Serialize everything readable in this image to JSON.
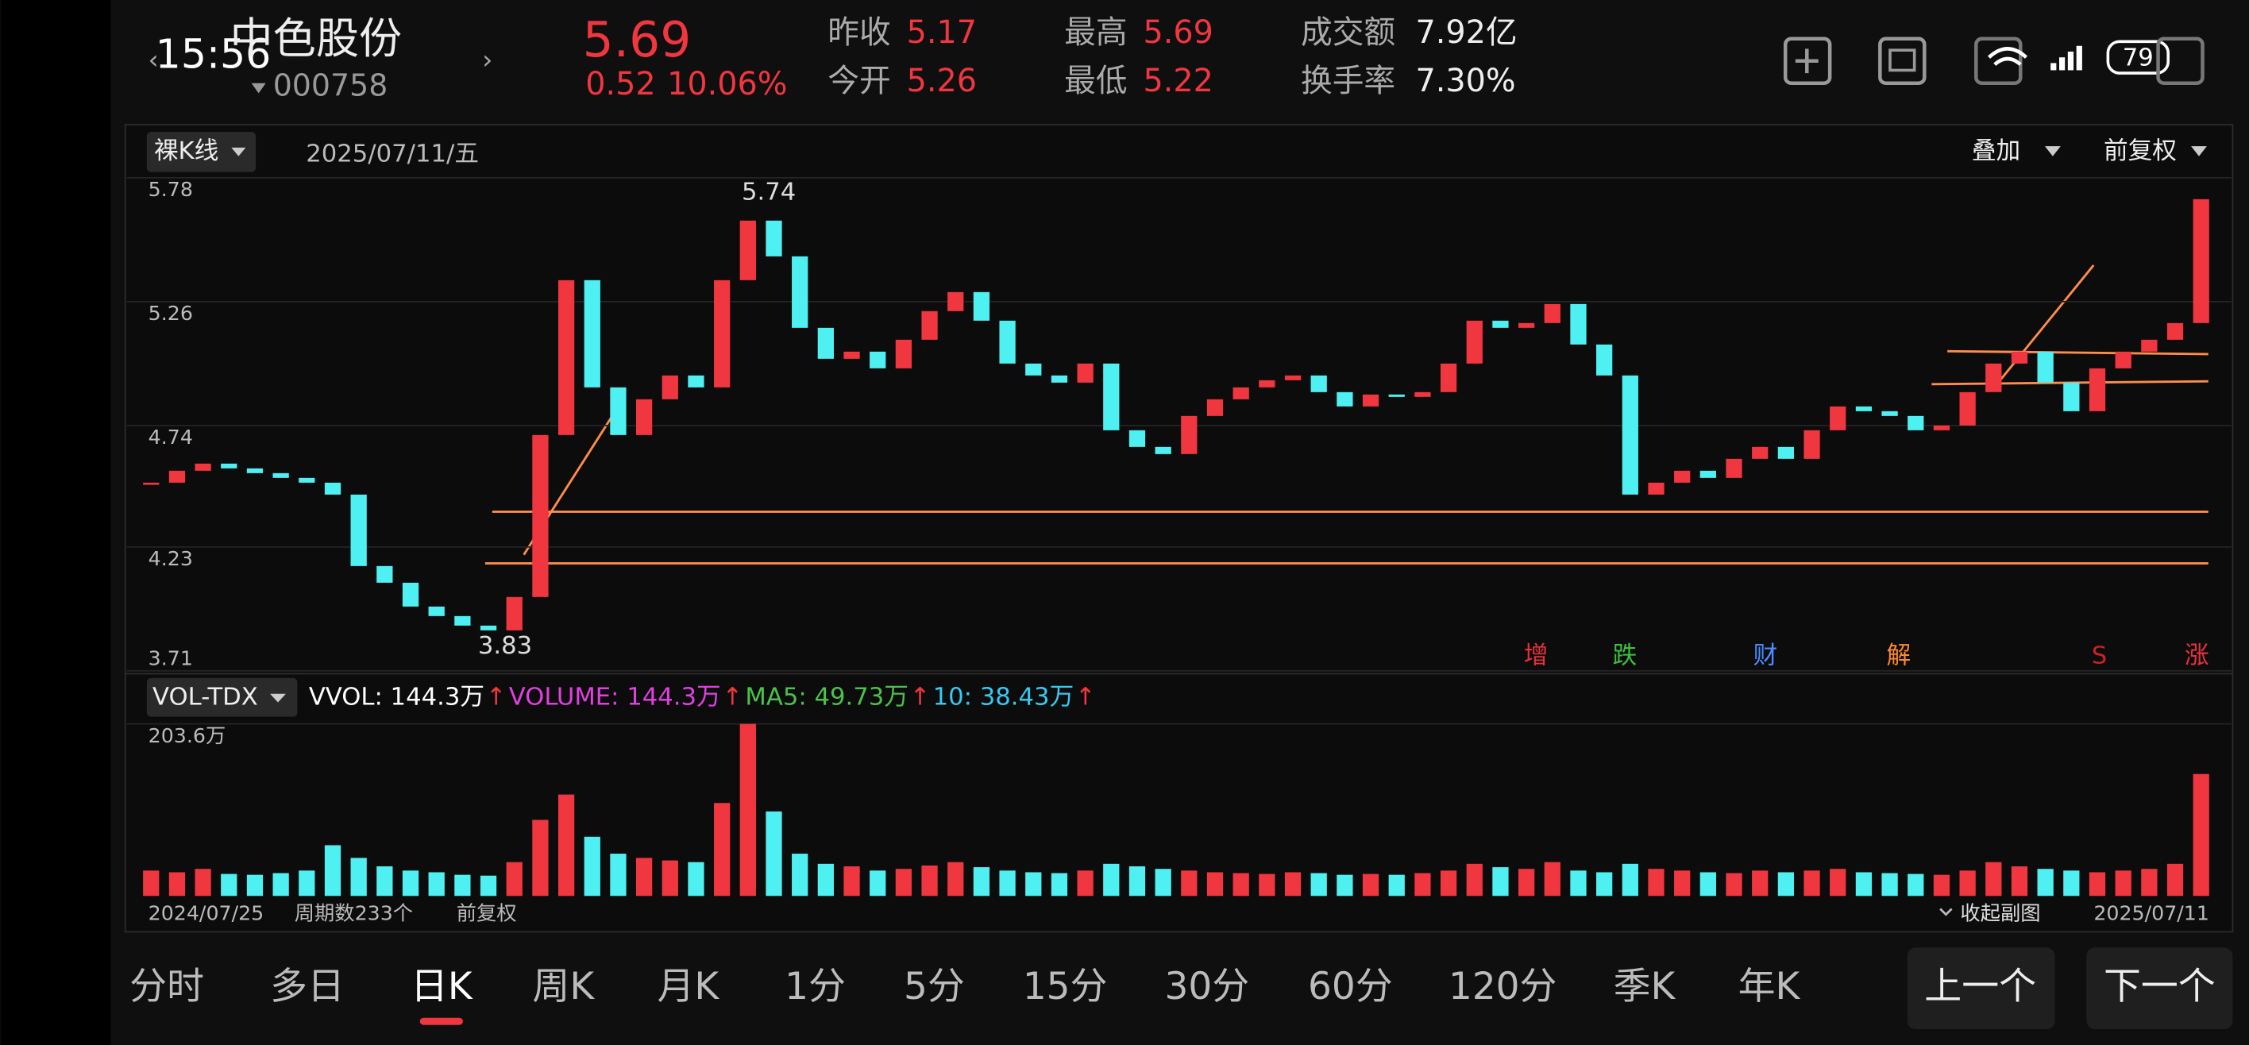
{
  "status": {
    "time": "15:56",
    "battery": 79
  },
  "header": {
    "name": "中色股份",
    "code": "000758",
    "price": 5.69,
    "change": 0.52,
    "change_pct": "10.06%",
    "quote": [
      {
        "label": "昨收",
        "value": 5.17
      },
      {
        "label": "今开",
        "value": 5.26
      },
      {
        "label": "最高",
        "value": 5.69
      },
      {
        "label": "最低",
        "value": 5.22
      },
      {
        "label": "成交额",
        "value": "7.92亿"
      },
      {
        "label": "换手率",
        "value": "7.30%"
      }
    ]
  },
  "chart_data": {
    "type": "candlestick",
    "mode_button": "裸K线",
    "date": "2025/07/11/五",
    "overlay": "叠加",
    "adjust": "前复权",
    "ylim": [
      3.71,
      5.78
    ],
    "yticks": [
      5.78,
      5.26,
      4.74,
      4.23,
      3.71
    ],
    "grid": true,
    "up_color": "#f0363f",
    "down_color": "#4ff0f2",
    "values": [
      4.5,
      4.55,
      4.58,
      4.56,
      4.54,
      4.52,
      4.5,
      4.45,
      4.15,
      4.08,
      3.98,
      3.94,
      3.9,
      3.88,
      4.02,
      4.7,
      5.35,
      4.9,
      4.7,
      4.85,
      4.95,
      4.9,
      5.35,
      5.6,
      5.45,
      5.15,
      5.02,
      5.05,
      4.98,
      5.1,
      5.22,
      5.3,
      5.18,
      5.0,
      4.95,
      4.92,
      5.0,
      4.72,
      4.65,
      4.62,
      4.78,
      4.85,
      4.9,
      4.93,
      4.95,
      4.88,
      4.82,
      4.87,
      4.86,
      4.88,
      5.0,
      5.18,
      5.15,
      5.17,
      5.25,
      5.08,
      4.95,
      4.45,
      4.5,
      4.55,
      4.52,
      4.6,
      4.65,
      4.6,
      4.72,
      4.82,
      4.8,
      4.78,
      4.72,
      4.74,
      4.88,
      5.0,
      5.05,
      4.92,
      4.8,
      4.98,
      5.05,
      5.1,
      5.17,
      5.69
    ],
    "high_label": 5.74,
    "low_label": 3.83,
    "events": [
      {
        "label": "增",
        "color": "#e8323c"
      },
      {
        "label": "跌",
        "color": "#3fbf3f"
      },
      {
        "label": "财",
        "color": "#4a8cff"
      },
      {
        "label": "解",
        "color": "#ff8a2a"
      },
      {
        "label": "S",
        "color": "#d02020"
      },
      {
        "label": "涨",
        "color": "#e8323c"
      }
    ],
    "volume": {
      "indicator": "VOL-TDX",
      "arrow": "↑",
      "arrow_color": "#f0363f",
      "legend": [
        {
          "label": "VVOL: 144.3万",
          "color": "#ffffff"
        },
        {
          "label": "VOLUME: 144.3万",
          "color": "#e040e0"
        },
        {
          "label": "MA5: 49.73万",
          "color": "#4cc04c"
        },
        {
          "label": "10: 38.43万",
          "color": "#38c8f0"
        }
      ],
      "ylim": [
        0,
        203.6
      ],
      "yticks": [
        {
          "value": 203.6,
          "label": "203.6万"
        }
      ],
      "values": [
        30,
        28,
        32,
        26,
        25,
        27,
        30,
        60,
        45,
        35,
        30,
        28,
        25,
        24,
        40,
        90,
        120,
        70,
        50,
        45,
        42,
        40,
        110,
        203.6,
        100,
        50,
        38,
        35,
        30,
        32,
        36,
        40,
        34,
        30,
        28,
        27,
        30,
        38,
        35,
        32,
        30,
        28,
        27,
        26,
        28,
        27,
        25,
        26,
        25,
        27,
        30,
        38,
        34,
        32,
        40,
        30,
        28,
        38,
        32,
        30,
        28,
        27,
        30,
        28,
        30,
        32,
        28,
        27,
        26,
        25,
        30,
        40,
        35,
        32,
        30,
        28,
        30,
        32,
        38,
        144.3
      ]
    },
    "start_date": "2024/07/25",
    "periods": "周期数233个",
    "footer_adjust": "前复权",
    "collapse": "收起副图",
    "end_date": "2025/07/11"
  },
  "tabs": [
    "分时",
    "多日",
    "日K",
    "周K",
    "月K",
    "1分",
    "5分",
    "15分",
    "30分",
    "60分",
    "120分",
    "季K",
    "年K"
  ],
  "active_tab": 2,
  "buttons": [
    "上一个",
    "下一个"
  ]
}
